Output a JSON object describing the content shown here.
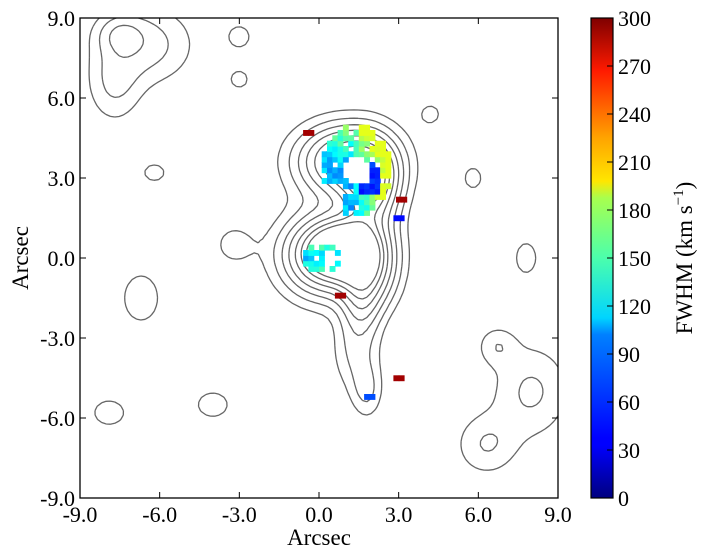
{
  "chart_data": [
    {
      "type": "heatmap",
      "title": "",
      "xlabel": "Arcsec",
      "ylabel": "Arcsec",
      "xlim": [
        -9.0,
        9.0
      ],
      "ylim": [
        -9.0,
        9.0
      ],
      "xticks": [
        "-9.0",
        "-6.0",
        "-3.0",
        "0.0",
        "3.0",
        "6.0",
        "9.0"
      ],
      "yticks": [
        "-9.0",
        "-6.0",
        "-3.0",
        "0.0",
        "3.0",
        "6.0",
        "9.0"
      ],
      "grid": false,
      "colormap": "jet",
      "overlay": "grey contours",
      "colors": {
        "contour": "#666666",
        "axis": "#000000"
      },
      "regions": [
        {
          "name": "northern knot",
          "x": [
            0.2,
            2.6
          ],
          "y": [
            1.5,
            5.0
          ],
          "fwhm_range": [
            40,
            180
          ]
        },
        {
          "name": "southern knot",
          "x": [
            -0.7,
            0.9
          ],
          "y": [
            -0.6,
            0.6
          ],
          "fwhm_range": [
            60,
            160
          ]
        },
        {
          "name": "isolated pixels",
          "points": [
            [
              2.9,
              -4.5,
              290
            ],
            [
              1.8,
              -5.2,
              60
            ],
            [
              2.9,
              1.5,
              40
            ],
            [
              0.7,
              -1.4,
              290
            ],
            [
              3.0,
              2.2,
              290
            ],
            [
              -0.5,
              4.7,
              290
            ]
          ]
        }
      ]
    },
    {
      "type": "colorbar",
      "label": "FWHM (km s",
      "label_sup": "−1",
      "label_close": ")",
      "range": [
        0,
        300
      ],
      "ticks": [
        "0",
        "30",
        "60",
        "90",
        "120",
        "150",
        "180",
        "210",
        "240",
        "270",
        "300"
      ]
    }
  ]
}
